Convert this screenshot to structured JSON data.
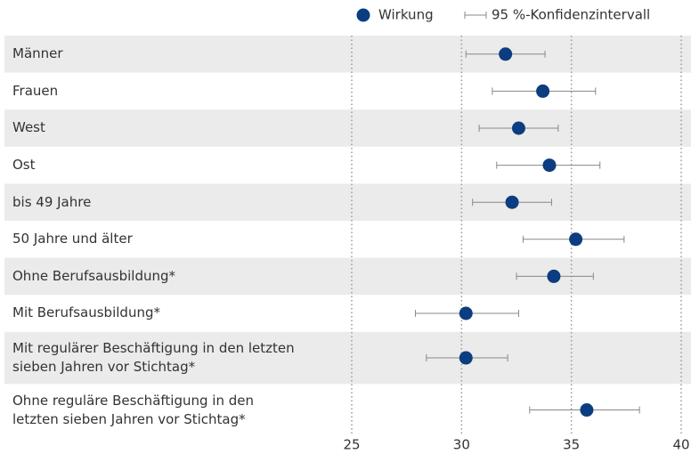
{
  "chart_data": {
    "type": "dot-whisker",
    "legend": {
      "point": "Wirkung",
      "interval": "95 %-Konfidenzintervall"
    },
    "categories": [
      "Männer",
      "Frauen",
      "West",
      "Ost",
      "bis 49 Jahre",
      "50 Jahre und älter",
      "Ohne Berufsausbildung*",
      "Mit Berufsausbildung*",
      "Mit regulärer Beschäftigung in den letzten\nsieben Jahren vor Stichtag*",
      "Ohne reguläre Beschäftigung in den\nletzten sieben Jahren vor Stichtag*"
    ],
    "values": [
      32.0,
      33.7,
      32.6,
      34.0,
      32.3,
      35.2,
      34.2,
      30.2,
      30.2,
      35.7
    ],
    "low": [
      30.2,
      31.4,
      30.8,
      31.6,
      30.5,
      32.8,
      32.5,
      27.9,
      28.4,
      33.1
    ],
    "high": [
      33.8,
      36.1,
      34.4,
      36.3,
      34.1,
      37.4,
      36.0,
      32.6,
      32.1,
      38.1
    ],
    "color": "#0b3d80",
    "whisker_color": "#888888",
    "band_color": "#ebebeb",
    "xlim": [
      25,
      40
    ],
    "xticks": [
      25,
      30,
      35,
      40
    ],
    "grid": true
  }
}
